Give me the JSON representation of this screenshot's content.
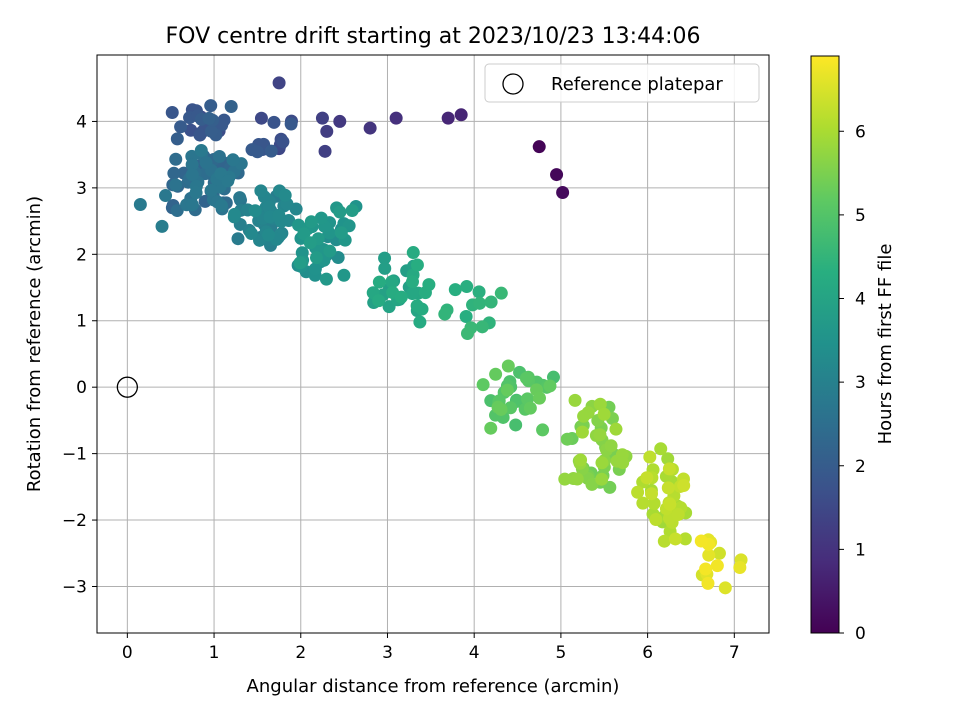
{
  "chart_data": {
    "type": "scatter",
    "title": "FOV centre drift starting at 2023/10/23 13:44:06",
    "xlabel": "Angular distance from reference (arcmin)",
    "ylabel": "Rotation from reference (arcmin)",
    "xlim": [
      -0.35,
      7.4
    ],
    "ylim": [
      -3.7,
      5.0
    ],
    "xticks": [
      "0",
      "1",
      "2",
      "3",
      "4",
      "5",
      "6",
      "7"
    ],
    "yticks": [
      "−3",
      "−2",
      "−1",
      "0",
      "1",
      "2",
      "3",
      "4"
    ],
    "grid": true,
    "legend": {
      "position": "top-right",
      "label": "Reference platepar"
    },
    "reference_point": {
      "x": 0,
      "y": 0
    },
    "colorbar": {
      "label": "Hours from first FF file",
      "colormap": "viridis",
      "range": [
        0,
        6.9
      ],
      "ticks": [
        "0",
        "1",
        "2",
        "3",
        "4",
        "5",
        "6"
      ]
    },
    "anchor_points": [
      {
        "x": 4.75,
        "y": 3.62,
        "t": 0.05
      },
      {
        "x": 4.95,
        "y": 3.2,
        "t": 0.12
      },
      {
        "x": 5.02,
        "y": 2.93,
        "t": 0.18
      },
      {
        "x": 3.85,
        "y": 4.1,
        "t": 0.7
      },
      {
        "x": 3.7,
        "y": 4.05,
        "t": 0.75
      },
      {
        "x": 3.1,
        "y": 4.05,
        "t": 0.95
      },
      {
        "x": 2.8,
        "y": 3.9,
        "t": 1.05
      },
      {
        "x": 2.45,
        "y": 4.0,
        "t": 1.15
      },
      {
        "x": 2.3,
        "y": 3.85,
        "t": 1.25
      },
      {
        "x": 2.28,
        "y": 3.55,
        "t": 1.3
      },
      {
        "x": 2.25,
        "y": 4.05,
        "t": 1.3
      },
      {
        "x": 1.75,
        "y": 4.58,
        "t": 1.4
      },
      {
        "x": 0.15,
        "y": 2.75,
        "t": 2.8
      },
      {
        "x": 0.4,
        "y": 2.42,
        "t": 2.9
      }
    ],
    "clusters": [
      {
        "x": [
          0.4,
          1.3
        ],
        "y": [
          3.6,
          4.3
        ],
        "t": [
          1.6,
          2.2
        ],
        "n": 22
      },
      {
        "x": [
          1.3,
          1.9
        ],
        "y": [
          3.3,
          4.3
        ],
        "t": [
          1.4,
          2.0
        ],
        "n": 14
      },
      {
        "x": [
          0.4,
          1.4
        ],
        "y": [
          2.6,
          3.6
        ],
        "t": [
          2.2,
          2.8
        ],
        "n": 70
      },
      {
        "x": [
          1.1,
          2.0
        ],
        "y": [
          2.1,
          3.0
        ],
        "t": [
          2.8,
          3.3
        ],
        "n": 42
      },
      {
        "x": [
          1.9,
          2.7
        ],
        "y": [
          1.6,
          2.8
        ],
        "t": [
          3.3,
          3.8
        ],
        "n": 45
      },
      {
        "x": [
          2.7,
          3.6
        ],
        "y": [
          0.9,
          2.1
        ],
        "t": [
          3.8,
          4.3
        ],
        "n": 30
      },
      {
        "x": [
          3.5,
          4.4
        ],
        "y": [
          0.3,
          1.8
        ],
        "t": [
          4.3,
          4.8
        ],
        "n": 14
      },
      {
        "x": [
          4.0,
          5.0
        ],
        "y": [
          -0.7,
          0.4
        ],
        "t": [
          4.8,
          5.3
        ],
        "n": 35
      },
      {
        "x": [
          5.0,
          5.8
        ],
        "y": [
          -1.7,
          -0.1
        ],
        "t": [
          5.3,
          5.9
        ],
        "n": 50
      },
      {
        "x": [
          5.8,
          6.5
        ],
        "y": [
          -2.4,
          -0.9
        ],
        "t": [
          5.9,
          6.4
        ],
        "n": 40
      },
      {
        "x": [
          6.4,
          7.1
        ],
        "y": [
          -3.3,
          -2.1
        ],
        "t": [
          6.4,
          6.9
        ],
        "n": 14
      }
    ],
    "seed": 7
  }
}
